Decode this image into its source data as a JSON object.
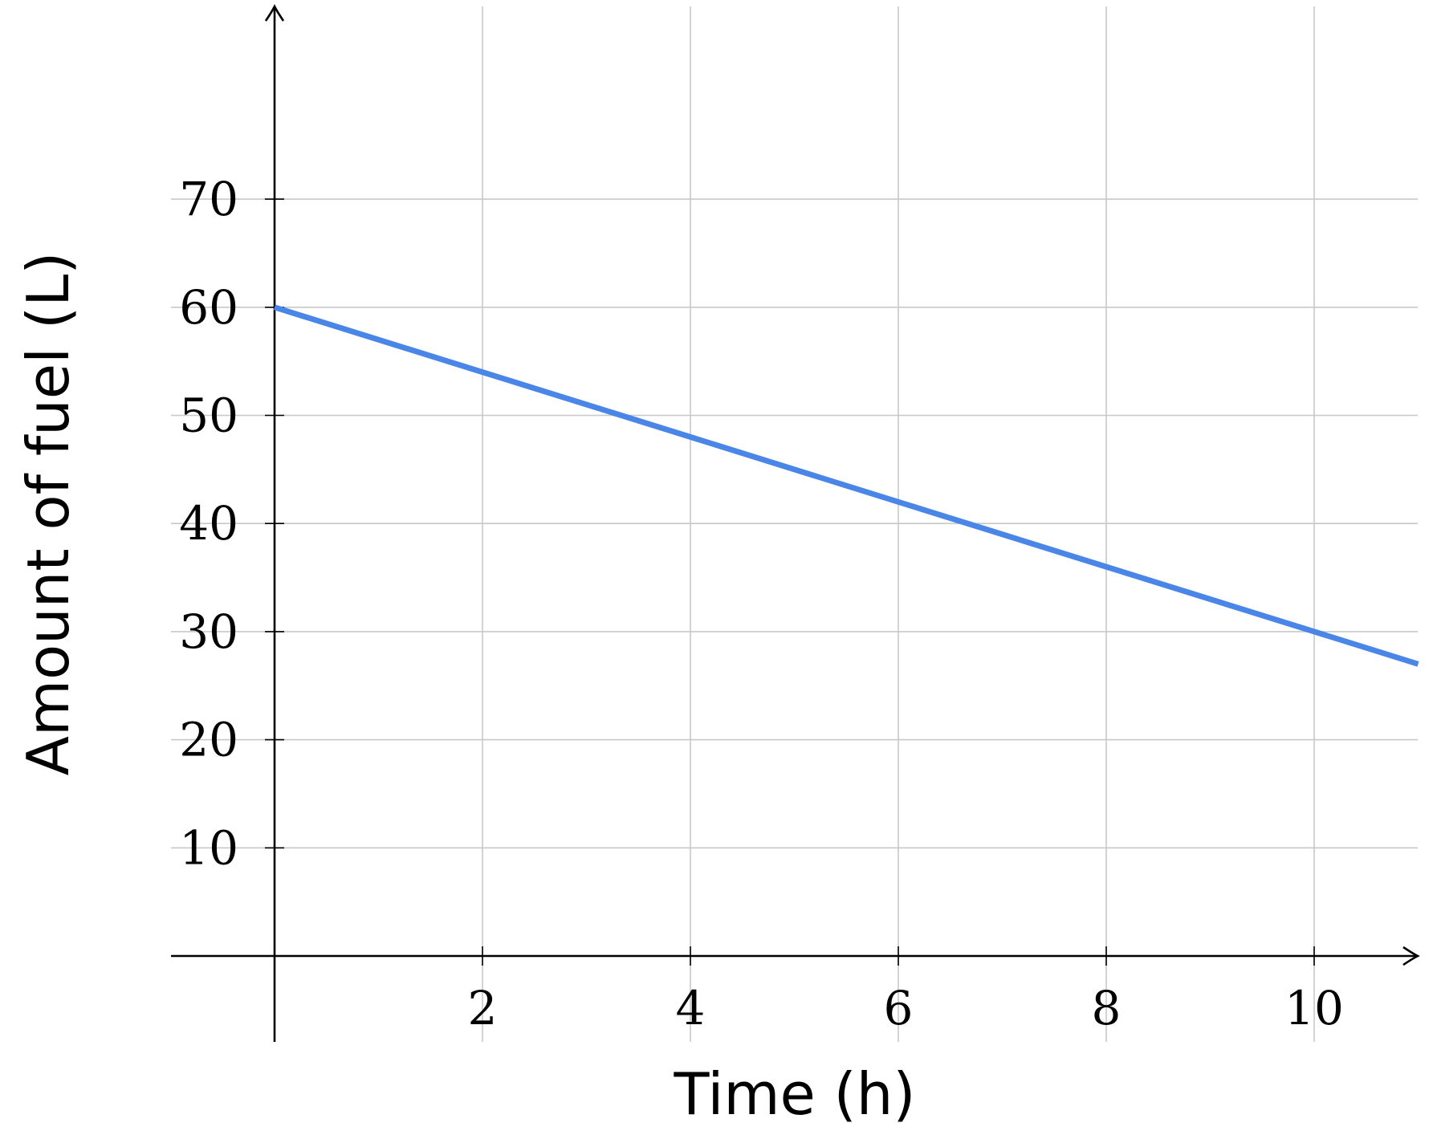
{
  "chart_data": {
    "type": "line",
    "xlabel": "Time (h)",
    "ylabel": "Amount of fuel (L)",
    "x_ticks": [
      2,
      4,
      6,
      8,
      10
    ],
    "y_ticks": [
      10,
      20,
      30,
      40,
      50,
      60,
      70
    ],
    "xlim": [
      -1,
      11
    ],
    "ylim": [
      -8,
      88
    ],
    "grid": true,
    "series": [
      {
        "color": "#4a86e8",
        "x": [
          0,
          2,
          4,
          6,
          8,
          10,
          11
        ],
        "y": [
          60,
          54,
          48,
          42,
          36,
          30,
          27
        ]
      }
    ]
  }
}
